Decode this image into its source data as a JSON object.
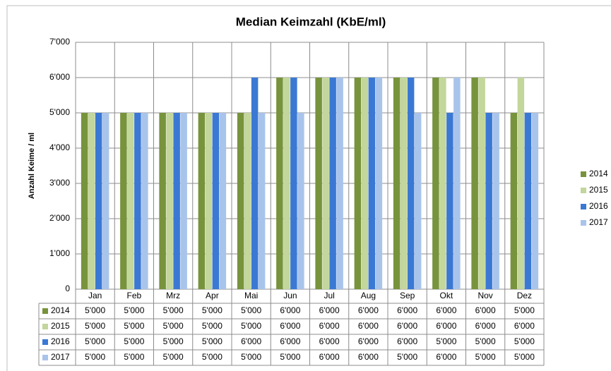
{
  "chart_data": {
    "type": "bar",
    "title": "Median Keimzahl (KbE/ml)",
    "y_label": "Anzahl Keime / ml",
    "categories": [
      "Jan",
      "Feb",
      "Mrz",
      "Apr",
      "Mai",
      "Jun",
      "Jul",
      "Aug",
      "Sep",
      "Okt",
      "Nov",
      "Dez"
    ],
    "series": [
      {
        "name": "2014",
        "color": "#77933c",
        "values": [
          5000,
          5000,
          5000,
          5000,
          5000,
          6000,
          6000,
          6000,
          6000,
          6000,
          6000,
          5000
        ],
        "value_labels": [
          "5'000",
          "5'000",
          "5'000",
          "5'000",
          "5'000",
          "6'000",
          "6'000",
          "6'000",
          "6'000",
          "6'000",
          "6'000",
          "5'000"
        ]
      },
      {
        "name": "2015",
        "color": "#c3d69b",
        "values": [
          5000,
          5000,
          5000,
          5000,
          5000,
          6000,
          6000,
          6000,
          6000,
          6000,
          6000,
          6000
        ],
        "value_labels": [
          "5'000",
          "5'000",
          "5'000",
          "5'000",
          "5'000",
          "6'000",
          "6'000",
          "6'000",
          "6'000",
          "6'000",
          "6'000",
          "6'000"
        ]
      },
      {
        "name": "2016",
        "color": "#3a78d4",
        "values": [
          5000,
          5000,
          5000,
          5000,
          6000,
          6000,
          6000,
          6000,
          6000,
          5000,
          5000,
          5000
        ],
        "value_labels": [
          "5'000",
          "5'000",
          "5'000",
          "5'000",
          "6'000",
          "6'000",
          "6'000",
          "6'000",
          "6'000",
          "5'000",
          "5'000",
          "5'000"
        ]
      },
      {
        "name": "2017",
        "color": "#a9c4eb",
        "values": [
          5000,
          5000,
          5000,
          5000,
          5000,
          5000,
          6000,
          6000,
          5000,
          6000,
          5000,
          5000
        ],
        "value_labels": [
          "5'000",
          "5'000",
          "5'000",
          "5'000",
          "5'000",
          "5'000",
          "6'000",
          "6'000",
          "5'000",
          "6'000",
          "5'000",
          "5'000"
        ]
      }
    ],
    "ylim": [
      0,
      7000
    ],
    "yticks": [
      0,
      {
        "value": 1000,
        "label": "1'000"
      },
      {
        "value": 2000,
        "label": "2'000"
      },
      {
        "value": 3000,
        "label": "3'000"
      },
      {
        "value": 4000,
        "label": "4'000"
      },
      {
        "value": 5000,
        "label": "5'000"
      },
      {
        "value": 6000,
        "label": "6'000"
      },
      {
        "value": 7000,
        "label": "7'000"
      }
    ],
    "grid": true,
    "legend": "right"
  }
}
